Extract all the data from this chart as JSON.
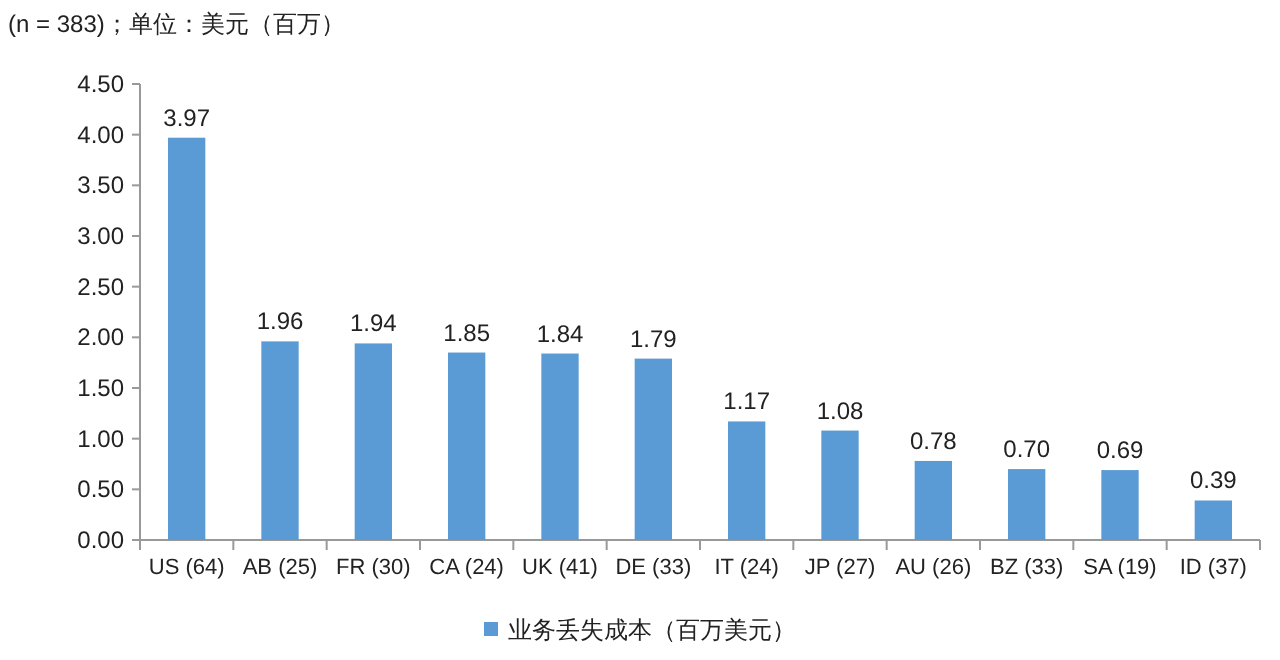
{
  "chart_data": {
    "type": "bar",
    "title": "(n = 383)；单位：美元（百万）",
    "categories": [
      "US (64)",
      "AB (25)",
      "FR (30)",
      "CA (24)",
      "UK (41)",
      "DE (33)",
      "IT (24)",
      "JP (27)",
      "AU (26)",
      "BZ (33)",
      "SA (19)",
      "ID (37)"
    ],
    "series": [
      {
        "name": "业务丢失成本（百万美元）",
        "color": "#5b9bd5",
        "values": [
          3.97,
          1.96,
          1.94,
          1.85,
          1.84,
          1.79,
          1.17,
          1.08,
          0.78,
          0.7,
          0.69,
          0.39
        ]
      }
    ],
    "value_labels": [
      "3.97",
      "1.96",
      "1.94",
      "1.85",
      "1.84",
      "1.79",
      "1.17",
      "1.08",
      "0.78",
      "0.70",
      "0.69",
      "0.39"
    ],
    "ylim": [
      0,
      4.5
    ],
    "yticks": [
      {
        "value": 0,
        "label": "0.00"
      },
      {
        "value": 0.5,
        "label": "0.50"
      },
      {
        "value": 1,
        "label": "1.00"
      },
      {
        "value": 1.5,
        "label": "1.50"
      },
      {
        "value": 2,
        "label": "2.00"
      },
      {
        "value": 2.5,
        "label": "2.50"
      },
      {
        "value": 3,
        "label": "3.00"
      },
      {
        "value": 3.5,
        "label": "3.50"
      },
      {
        "value": 4,
        "label": "4.00"
      },
      {
        "value": 4.5,
        "label": "4.50"
      }
    ],
    "grid": false,
    "legend": "bottom"
  }
}
